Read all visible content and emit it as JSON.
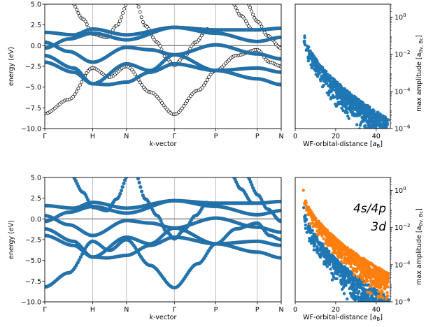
{
  "chart_data": [
    {
      "type": "line",
      "panel": "top-left band structure",
      "xlabel": "k-vector",
      "xlabel_italic_part": "k",
      "ylabel": "energy (eV)",
      "ylim": [
        -10.0,
        5.0
      ],
      "yticks": [
        "5.0",
        "2.5",
        "0.0",
        "−2.5",
        "−5.0",
        "−7.5",
        "−10.0"
      ],
      "ytick_values": [
        5.0,
        2.5,
        0.0,
        -2.5,
        -5.0,
        -7.5,
        -10.0
      ],
      "xticks": [
        "Γ",
        "H",
        "N",
        "Γ",
        "P",
        "P",
        "N"
      ],
      "xtick_positions": [
        0,
        1,
        1.7071,
        2.7071,
        3.5731,
        4.4391,
        4.9391
      ],
      "fermi_level": 0.0,
      "series": [
        {
          "style": "black open circles",
          "s_band": [
            [
              0,
              -8.2
            ],
            [
              0.5,
              -6.5
            ],
            [
              1,
              -2.7
            ],
            [
              1.35,
              -3.8
            ],
            [
              1.7071,
              -2.5
            ],
            [
              2.2,
              -5.6
            ],
            [
              2.7071,
              -8.3
            ],
            [
              3.2,
              -5.4
            ],
            [
              3.5731,
              -3.0
            ],
            [
              4.0,
              -1.2
            ],
            [
              4.4391,
              -0.5
            ],
            [
              4.7,
              -2.0
            ],
            [
              4.9391,
              -2.5
            ]
          ],
          "upper_branches": [
            [
              0.6,
              5.0
            ],
            [
              1.0,
              1.3
            ],
            [
              1.4,
              4.0
            ],
            [
              1.85,
              5.0
            ],
            [
              2.05,
              2.0
            ],
            [
              2.3,
              0.1
            ],
            [
              2.55,
              -1.8
            ],
            [
              2.7071,
              -2.4
            ],
            [
              4.35,
              5.0
            ],
            [
              4.6,
              1.5
            ],
            [
              4.9391,
              -0.2
            ]
          ]
        },
        {
          "style": "blue filled circles (tight-binding)",
          "d_bands": [
            [
              [
                0,
                1.6
              ],
              [
                0.6,
                1.3
              ],
              [
                1,
                2.0
              ],
              [
                1.7071,
                1.3
              ],
              [
                2.7071,
                2.2
              ],
              [
                3.5731,
                1.9
              ],
              [
                4.4391,
                1.9
              ],
              [
                4.9391,
                2.1
              ]
            ],
            [
              [
                0,
                0.4
              ],
              [
                0.5,
                -0.7
              ],
              [
                1,
                -2.0
              ],
              [
                1.7071,
                -0.2
              ],
              [
                2.2,
                -0.5
              ],
              [
                2.7071,
                -1.1
              ],
              [
                3.5731,
                0.1
              ],
              [
                4.4391,
                -1.0
              ],
              [
                4.9391,
                -1.6
              ]
            ],
            [
              [
                0,
                -1.2
              ],
              [
                0.6,
                -2.7
              ],
              [
                1,
                -4.6
              ],
              [
                1.7071,
                -2.2
              ],
              [
                2.2,
                -3.0
              ],
              [
                2.7071,
                -1.1
              ],
              [
                3.5731,
                -3.0
              ],
              [
                4.4391,
                -2.7
              ],
              [
                4.9391,
                -3.2
              ]
            ],
            [
              [
                0,
                -2.0
              ],
              [
                0.6,
                -3.2
              ],
              [
                1,
                -4.6
              ],
              [
                1.3,
                -4.7
              ],
              [
                1.7071,
                -4.4
              ],
              [
                2.2,
                -3.2
              ],
              [
                2.7071,
                -2.2
              ],
              [
                3.5731,
                -3.0
              ],
              [
                4.4391,
                -4.0
              ],
              [
                4.9391,
                -4.7
              ]
            ],
            [
              [
                0,
                -0.3
              ],
              [
                0.5,
                0.8
              ],
              [
                1,
                1.5
              ],
              [
                1.7071,
                0.7
              ],
              [
                2.7071,
                2.2
              ],
              [
                3.5731,
                1.5
              ],
              [
                4.4391,
                0.5
              ],
              [
                4.9391,
                1.0
              ]
            ]
          ]
        }
      ]
    },
    {
      "type": "scatter",
      "panel": "top-right decay",
      "xlabel": "WF-orbital-distance [a_B]",
      "xlabel_prefix": "WF-orbital-distance [",
      "xlabel_symbol": "a",
      "xlabel_sub": "B",
      "xlabel_suffix": "]",
      "ylabel": "max amplitude [a_{0v,Bc}]",
      "ylabel_text": "max amplitude [a",
      "ylabel_sub": "0v, Bc",
      "ylabel_suffix": "]",
      "xlim": [
        0,
        47
      ],
      "xticks": [
        "0",
        "20",
        "40"
      ],
      "xtick_values": [
        0,
        20,
        40
      ],
      "yscale": "log",
      "ylim": [
        1e-06,
        5
      ],
      "ytick_values": [
        1,
        0.01,
        0.0001,
        1e-06
      ],
      "ytick_base": "10",
      "ytick_exps": [
        "0",
        "−2",
        "−4",
        "−6"
      ],
      "series": [
        {
          "color": "#1f77b4",
          "envelope_upper_log10": -0.3,
          "envelope_lower_log10": -5.7
        }
      ]
    },
    {
      "type": "line",
      "panel": "bottom-left band structure",
      "xlabel": "k-vector",
      "xlabel_italic_part": "k",
      "ylabel": "energy (eV)",
      "ylim": [
        -10.0,
        5.0
      ],
      "yticks": [
        "5.0",
        "2.5",
        "0.0",
        "−2.5",
        "−5.0",
        "−7.5",
        "−10.0"
      ],
      "ytick_values": [
        5.0,
        2.5,
        0.0,
        -2.5,
        -5.0,
        -7.5,
        -10.0
      ],
      "xticks": [
        "Γ",
        "H",
        "N",
        "Γ",
        "P",
        "P",
        "N"
      ],
      "xtick_positions": [
        0,
        1,
        1.7071,
        2.7071,
        3.5731,
        4.4391,
        4.9391
      ],
      "fermi_level": 0.0,
      "series": [
        {
          "style": "blue filled circles (all bands reproduced)"
        }
      ]
    },
    {
      "type": "scatter",
      "panel": "bottom-right decay",
      "xlabel": "WF-orbital-distance [a_B]",
      "xlabel_prefix": "WF-orbital-distance [",
      "xlabel_symbol": "a",
      "xlabel_sub": "B",
      "xlabel_suffix": "]",
      "ylabel": "max amplitude [a_{0v,Bc}]",
      "ylabel_text": "max amplitude [a",
      "ylabel_sub": "0v, Bc",
      "ylabel_suffix": "]",
      "xlim": [
        0,
        47
      ],
      "xticks": [
        "0",
        "20",
        "40"
      ],
      "xtick_values": [
        0,
        20,
        40
      ],
      "yscale": "log",
      "ylim": [
        1e-06,
        5
      ],
      "ytick_values": [
        1,
        0.01,
        0.0001,
        1e-06
      ],
      "ytick_base": "10",
      "ytick_exps": [
        "0",
        "−2",
        "−4",
        "−6"
      ],
      "series": [
        {
          "name": "4s/4p",
          "color": "#ff7f0e",
          "envelope_upper_log10": 0.3,
          "envelope_lower_log10": -4.7
        },
        {
          "name": "3d",
          "color": "#1f77b4",
          "envelope_upper_log10": -0.2,
          "envelope_lower_log10": -5.8
        }
      ],
      "annotations": [
        {
          "text": "4s/4p",
          "color": "#ff7f0e",
          "placement": "upper-right"
        },
        {
          "text": "3d",
          "color": "#1f77b4",
          "placement": "right"
        }
      ]
    }
  ]
}
